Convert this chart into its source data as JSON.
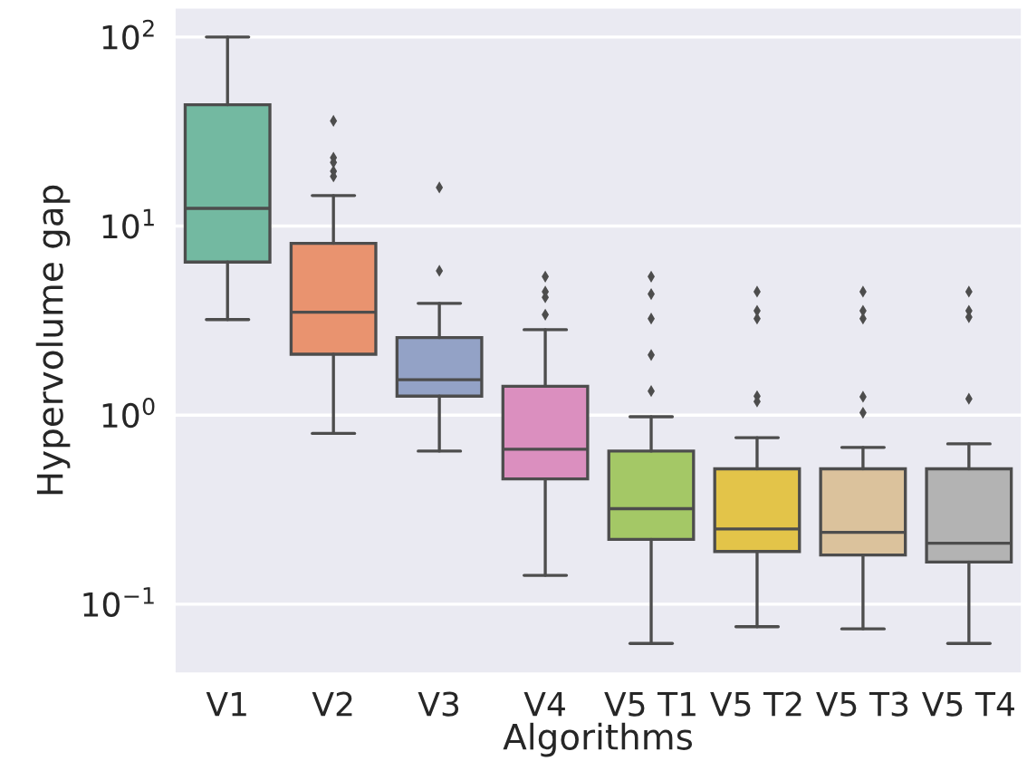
{
  "chart_data": {
    "type": "box",
    "xlabel": "Algorithms",
    "ylabel": "Hypervolume gap",
    "categories": [
      "V1",
      "V2",
      "V3",
      "V4",
      "V5 T1",
      "V5 T2",
      "V5 T3",
      "V5 T4"
    ],
    "colors": [
      "#73b9a1",
      "#e9936f",
      "#93a2c6",
      "#db8fbf",
      "#a4c866",
      "#e3c449",
      "#dbc29c",
      "#b3b3b3"
    ],
    "boxes": [
      {
        "low": 3.2,
        "q1": 6.45,
        "median": 12.4,
        "q3": 43.8,
        "high": 100
      },
      {
        "low": 0.8,
        "q1": 2.1,
        "median": 3.5,
        "q3": 8.1,
        "high": 14.5,
        "outliers": [
          36,
          23,
          21.7,
          19.5,
          18.3
        ]
      },
      {
        "low": 0.645,
        "q1": 1.26,
        "median": 1.54,
        "q3": 2.57,
        "high": 3.9,
        "outliers": [
          16,
          5.8
        ]
      },
      {
        "low": 0.142,
        "q1": 0.46,
        "median": 0.66,
        "q3": 1.42,
        "high": 2.83,
        "outliers": [
          5.4,
          4.5,
          4.2,
          3.4
        ]
      },
      {
        "low": 0.062,
        "q1": 0.22,
        "median": 0.32,
        "q3": 0.645,
        "high": 0.98,
        "outliers": [
          5.4,
          4.37,
          3.24,
          2.08,
          1.34
        ]
      },
      {
        "low": 0.076,
        "q1": 0.19,
        "median": 0.25,
        "q3": 0.52,
        "high": 0.76,
        "outliers": [
          4.5,
          3.56,
          3.24,
          1.26,
          1.18
        ]
      },
      {
        "low": 0.074,
        "q1": 0.182,
        "median": 0.24,
        "q3": 0.52,
        "high": 0.675,
        "outliers": [
          4.5,
          3.56,
          3.24,
          1.25,
          1.03
        ]
      },
      {
        "low": 0.062,
        "q1": 0.167,
        "median": 0.21,
        "q3": 0.52,
        "high": 0.705,
        "outliers": [
          4.5,
          3.56,
          3.3,
          1.22
        ]
      }
    ],
    "log": "y",
    "ylim": [
      0.043,
      143
    ],
    "yticks": [
      {
        "value": 0.1,
        "label": "10$^{−1}$"
      },
      {
        "value": 1,
        "label": "10$^{0}$"
      },
      {
        "value": 10,
        "label": "10$^{1}$"
      },
      {
        "value": 100,
        "label": "10$^{2}$"
      }
    ],
    "grid": "y"
  }
}
